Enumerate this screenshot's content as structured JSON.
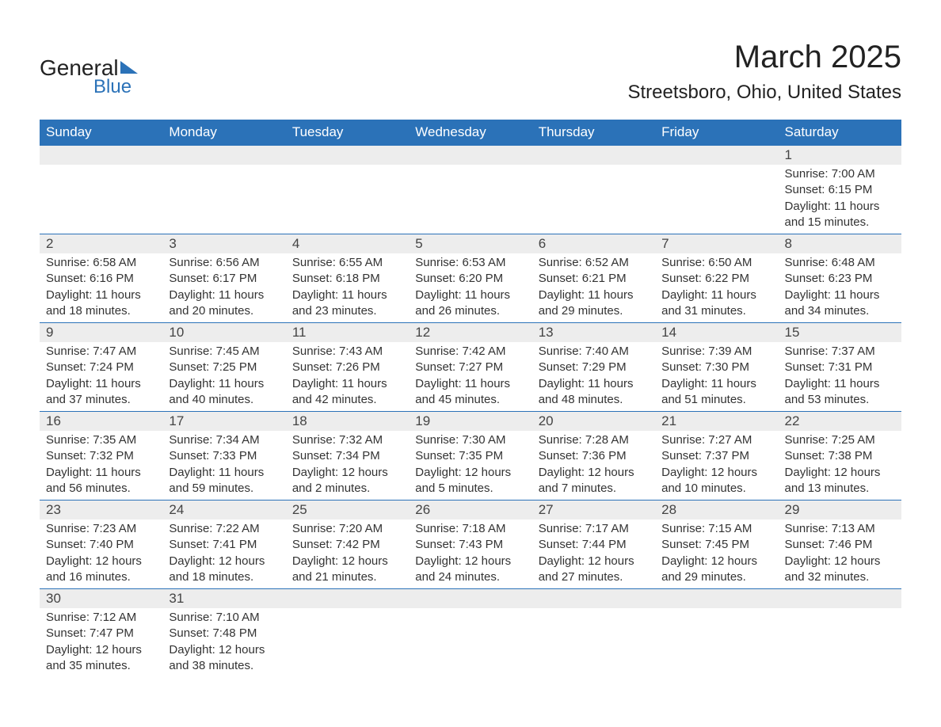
{
  "logo": {
    "general": "General",
    "blue": "Blue"
  },
  "header": {
    "month_title": "March 2025",
    "location": "Streetsboro, Ohio, United States"
  },
  "colors": {
    "header_bg": "#2b72b8",
    "header_text": "#ffffff",
    "day_number_bg": "#ededed",
    "text_dark": "#222222",
    "text_body": "#333333",
    "logo_blue": "#2b72b8"
  },
  "day_headers": [
    "Sunday",
    "Monday",
    "Tuesday",
    "Wednesday",
    "Thursday",
    "Friday",
    "Saturday"
  ],
  "weeks": [
    [
      null,
      null,
      null,
      null,
      null,
      null,
      {
        "day": "1",
        "sunrise": "7:00 AM",
        "sunset": "6:15 PM",
        "daylight": "11 hours and 15 minutes."
      }
    ],
    [
      {
        "day": "2",
        "sunrise": "6:58 AM",
        "sunset": "6:16 PM",
        "daylight": "11 hours and 18 minutes."
      },
      {
        "day": "3",
        "sunrise": "6:56 AM",
        "sunset": "6:17 PM",
        "daylight": "11 hours and 20 minutes."
      },
      {
        "day": "4",
        "sunrise": "6:55 AM",
        "sunset": "6:18 PM",
        "daylight": "11 hours and 23 minutes."
      },
      {
        "day": "5",
        "sunrise": "6:53 AM",
        "sunset": "6:20 PM",
        "daylight": "11 hours and 26 minutes."
      },
      {
        "day": "6",
        "sunrise": "6:52 AM",
        "sunset": "6:21 PM",
        "daylight": "11 hours and 29 minutes."
      },
      {
        "day": "7",
        "sunrise": "6:50 AM",
        "sunset": "6:22 PM",
        "daylight": "11 hours and 31 minutes."
      },
      {
        "day": "8",
        "sunrise": "6:48 AM",
        "sunset": "6:23 PM",
        "daylight": "11 hours and 34 minutes."
      }
    ],
    [
      {
        "day": "9",
        "sunrise": "7:47 AM",
        "sunset": "7:24 PM",
        "daylight": "11 hours and 37 minutes."
      },
      {
        "day": "10",
        "sunrise": "7:45 AM",
        "sunset": "7:25 PM",
        "daylight": "11 hours and 40 minutes."
      },
      {
        "day": "11",
        "sunrise": "7:43 AM",
        "sunset": "7:26 PM",
        "daylight": "11 hours and 42 minutes."
      },
      {
        "day": "12",
        "sunrise": "7:42 AM",
        "sunset": "7:27 PM",
        "daylight": "11 hours and 45 minutes."
      },
      {
        "day": "13",
        "sunrise": "7:40 AM",
        "sunset": "7:29 PM",
        "daylight": "11 hours and 48 minutes."
      },
      {
        "day": "14",
        "sunrise": "7:39 AM",
        "sunset": "7:30 PM",
        "daylight": "11 hours and 51 minutes."
      },
      {
        "day": "15",
        "sunrise": "7:37 AM",
        "sunset": "7:31 PM",
        "daylight": "11 hours and 53 minutes."
      }
    ],
    [
      {
        "day": "16",
        "sunrise": "7:35 AM",
        "sunset": "7:32 PM",
        "daylight": "11 hours and 56 minutes."
      },
      {
        "day": "17",
        "sunrise": "7:34 AM",
        "sunset": "7:33 PM",
        "daylight": "11 hours and 59 minutes."
      },
      {
        "day": "18",
        "sunrise": "7:32 AM",
        "sunset": "7:34 PM",
        "daylight": "12 hours and 2 minutes."
      },
      {
        "day": "19",
        "sunrise": "7:30 AM",
        "sunset": "7:35 PM",
        "daylight": "12 hours and 5 minutes."
      },
      {
        "day": "20",
        "sunrise": "7:28 AM",
        "sunset": "7:36 PM",
        "daylight": "12 hours and 7 minutes."
      },
      {
        "day": "21",
        "sunrise": "7:27 AM",
        "sunset": "7:37 PM",
        "daylight": "12 hours and 10 minutes."
      },
      {
        "day": "22",
        "sunrise": "7:25 AM",
        "sunset": "7:38 PM",
        "daylight": "12 hours and 13 minutes."
      }
    ],
    [
      {
        "day": "23",
        "sunrise": "7:23 AM",
        "sunset": "7:40 PM",
        "daylight": "12 hours and 16 minutes."
      },
      {
        "day": "24",
        "sunrise": "7:22 AM",
        "sunset": "7:41 PM",
        "daylight": "12 hours and 18 minutes."
      },
      {
        "day": "25",
        "sunrise": "7:20 AM",
        "sunset": "7:42 PM",
        "daylight": "12 hours and 21 minutes."
      },
      {
        "day": "26",
        "sunrise": "7:18 AM",
        "sunset": "7:43 PM",
        "daylight": "12 hours and 24 minutes."
      },
      {
        "day": "27",
        "sunrise": "7:17 AM",
        "sunset": "7:44 PM",
        "daylight": "12 hours and 27 minutes."
      },
      {
        "day": "28",
        "sunrise": "7:15 AM",
        "sunset": "7:45 PM",
        "daylight": "12 hours and 29 minutes."
      },
      {
        "day": "29",
        "sunrise": "7:13 AM",
        "sunset": "7:46 PM",
        "daylight": "12 hours and 32 minutes."
      }
    ],
    [
      {
        "day": "30",
        "sunrise": "7:12 AM",
        "sunset": "7:47 PM",
        "daylight": "12 hours and 35 minutes."
      },
      {
        "day": "31",
        "sunrise": "7:10 AM",
        "sunset": "7:48 PM",
        "daylight": "12 hours and 38 minutes."
      },
      null,
      null,
      null,
      null,
      null
    ]
  ],
  "labels": {
    "sunrise": "Sunrise: ",
    "sunset": "Sunset: ",
    "daylight": "Daylight: "
  }
}
